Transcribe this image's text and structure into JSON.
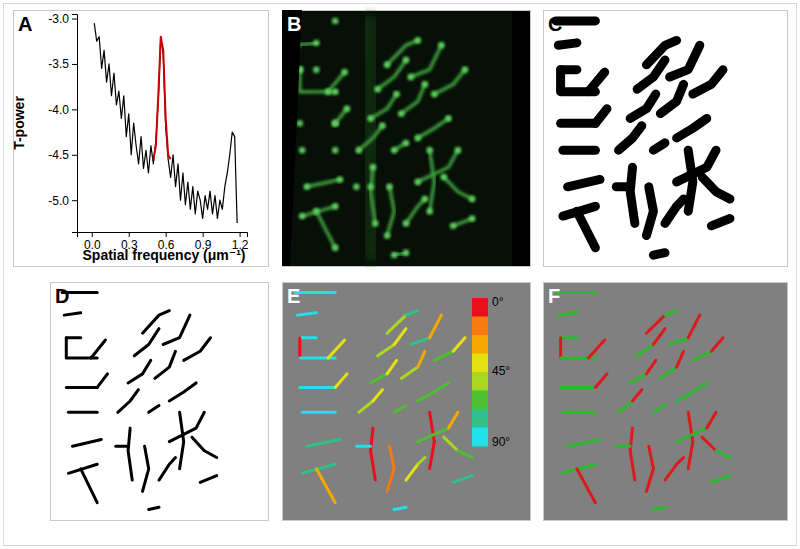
{
  "chart_data": {
    "type": "line",
    "x_label": "Spatial frequency (μm⁻¹)",
    "y_label": "T-power",
    "x": [
      0.02,
      0.04,
      0.06,
      0.08,
      0.1,
      0.12,
      0.14,
      0.16,
      0.18,
      0.2,
      0.22,
      0.24,
      0.26,
      0.28,
      0.3,
      0.32,
      0.34,
      0.36,
      0.38,
      0.4,
      0.42,
      0.44,
      0.46,
      0.48,
      0.5,
      0.52,
      0.54,
      0.56,
      0.58,
      0.6,
      0.62,
      0.64,
      0.66,
      0.68,
      0.7,
      0.72,
      0.74,
      0.76,
      0.78,
      0.8,
      0.82,
      0.84,
      0.86,
      0.88,
      0.9,
      0.92,
      0.94,
      0.96,
      0.98,
      1.0,
      1.02,
      1.04,
      1.06,
      1.08,
      1.1,
      1.12,
      1.14,
      1.16,
      1.18
    ],
    "series": [
      {
        "color": "#000000",
        "values": [
          -3.05,
          -3.25,
          -3.2,
          -3.55,
          -3.35,
          -3.7,
          -3.5,
          -3.85,
          -3.6,
          -3.95,
          -3.8,
          -4.1,
          -3.85,
          -4.3,
          -4.05,
          -4.5,
          -4.15,
          -4.4,
          -4.6,
          -4.3,
          -4.65,
          -4.45,
          -4.7,
          -4.4,
          -4.6,
          -4.35,
          -3.9,
          -3.2,
          -3.4,
          -4.2,
          -4.55,
          -4.75,
          -4.5,
          -4.85,
          -4.6,
          -5.0,
          -4.7,
          -5.05,
          -4.8,
          -5.1,
          -4.85,
          -5.15,
          -4.9,
          -5.0,
          -5.2,
          -4.95,
          -5.1,
          -4.9,
          -5.15,
          -4.95,
          -5.2,
          -5.0,
          -5.1,
          -4.85,
          -4.7,
          -4.5,
          -4.25,
          -4.3,
          -5.25
        ]
      },
      {
        "color": "#cc0000",
        "values": [
          null,
          null,
          null,
          null,
          null,
          null,
          null,
          null,
          null,
          null,
          null,
          null,
          null,
          null,
          null,
          null,
          null,
          null,
          null,
          null,
          null,
          null,
          null,
          null,
          -4.55,
          -4.4,
          -3.85,
          -3.2,
          -3.35,
          -4.1,
          -4.5,
          -4.55,
          null,
          null,
          null,
          null,
          null,
          null,
          null,
          null,
          null,
          null,
          null,
          null,
          null,
          null,
          null,
          null,
          null,
          null,
          null,
          null,
          null,
          null,
          null,
          null,
          null,
          null,
          null
        ]
      }
    ],
    "xlim": [
      -0.12,
      1.26
    ],
    "ylim": [
      -5.35,
      -2.95
    ],
    "xticks": [
      {
        "value": 0,
        "label": "0.0"
      },
      0.3,
      0.6,
      0.9,
      1.2
    ],
    "yticks": [
      {
        "value": -3,
        "label": "-3.0"
      },
      -3.5,
      {
        "value": -4,
        "label": "-4.0"
      },
      -4.5,
      {
        "value": -5,
        "label": "-5.0"
      }
    ],
    "grid": false
  },
  "panels": {
    "labels": [
      "A",
      "B",
      "C",
      "D",
      "E",
      "F"
    ]
  },
  "colorbar": {
    "range": [
      0,
      90
    ],
    "ticks": [
      {
        "value": 0,
        "label": "0°"
      },
      {
        "value": 45,
        "label": "45°"
      },
      {
        "value": 90,
        "label": "90°"
      }
    ],
    "colors": [
      "#e8101c",
      "#f57a10",
      "#f5a800",
      "#e6e010",
      "#a8d820",
      "#4cc030",
      "#30c088",
      "#20e0e8"
    ]
  }
}
